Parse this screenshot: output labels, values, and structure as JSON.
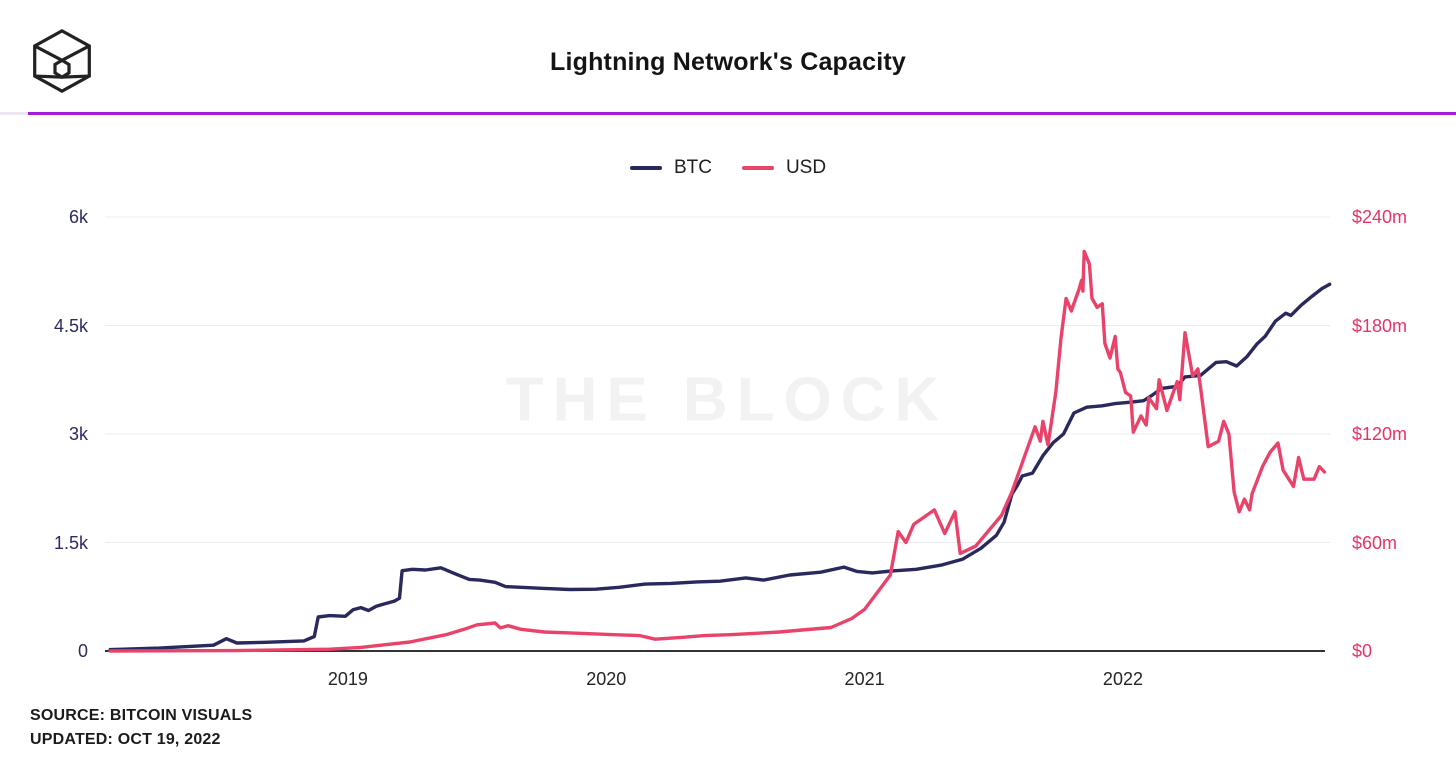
{
  "header": {
    "title": "Lightning Network's Capacity",
    "logo_icon": "block-cube-logo"
  },
  "colors": {
    "accent_divider": "#a21fd6",
    "btc_line": "#29295e",
    "usd_line": "#e9436b",
    "left_axis_text": "#2b2b63",
    "right_axis_text": "#e73366",
    "grid": "#ececec",
    "axis_line": "#333333",
    "watermark_text": "#f2f2f2"
  },
  "watermark": "THE BLOCK",
  "footer": {
    "source_label": "SOURCE: BITCOIN VISUALS",
    "updated_label": "UPDATED: OCT 19, 2022"
  },
  "chart_data": {
    "type": "line",
    "title": "Lightning Network's Capacity",
    "legend_position": "top-center",
    "grid": true,
    "x_domain": [
      2018.06,
      2022.782
    ],
    "x_ticks": [
      {
        "value": 2019,
        "label": "2019"
      },
      {
        "value": 2020,
        "label": "2020"
      },
      {
        "value": 2021,
        "label": "2021"
      },
      {
        "value": 2022,
        "label": "2022"
      }
    ],
    "y_left": {
      "ylim": [
        0,
        6000
      ],
      "ticks": [
        {
          "value": 0,
          "label": "0"
        },
        {
          "value": 1500,
          "label": "1.5k"
        },
        {
          "value": 3000,
          "label": "3k"
        },
        {
          "value": 4500,
          "label": "4.5k"
        },
        {
          "value": 6000,
          "label": "6k"
        }
      ]
    },
    "y_right": {
      "ylim": [
        0,
        240
      ],
      "ticks": [
        {
          "value": 0,
          "label": "$0"
        },
        {
          "value": 60,
          "label": "$60m"
        },
        {
          "value": 120,
          "label": "$120m"
        },
        {
          "value": 180,
          "label": "$180m"
        },
        {
          "value": 240,
          "label": "$240m"
        }
      ]
    },
    "series": [
      {
        "name": "BTC",
        "axis": "left",
        "color": "#29295e",
        "points": [
          [
            2018.08,
            20
          ],
          [
            2018.27,
            40
          ],
          [
            2018.48,
            80
          ],
          [
            2018.53,
            170
          ],
          [
            2018.57,
            110
          ],
          [
            2018.68,
            120
          ],
          [
            2018.83,
            140
          ],
          [
            2018.87,
            200
          ],
          [
            2018.885,
            470
          ],
          [
            2018.93,
            490
          ],
          [
            2018.99,
            480
          ],
          [
            2019.02,
            570
          ],
          [
            2019.05,
            600
          ],
          [
            2019.08,
            560
          ],
          [
            2019.11,
            620
          ],
          [
            2019.14,
            650
          ],
          [
            2019.18,
            690
          ],
          [
            2019.2,
            730
          ],
          [
            2019.21,
            1110
          ],
          [
            2019.25,
            1130
          ],
          [
            2019.3,
            1120
          ],
          [
            2019.36,
            1150
          ],
          [
            2019.42,
            1060
          ],
          [
            2019.47,
            990
          ],
          [
            2019.51,
            980
          ],
          [
            2019.57,
            950
          ],
          [
            2019.61,
            890
          ],
          [
            2019.67,
            880
          ],
          [
            2019.76,
            865
          ],
          [
            2019.86,
            850
          ],
          [
            2019.96,
            855
          ],
          [
            2020.05,
            880
          ],
          [
            2020.15,
            925
          ],
          [
            2020.25,
            935
          ],
          [
            2020.35,
            955
          ],
          [
            2020.44,
            965
          ],
          [
            2020.54,
            1010
          ],
          [
            2020.61,
            980
          ],
          [
            2020.71,
            1050
          ],
          [
            2020.83,
            1090
          ],
          [
            2020.92,
            1160
          ],
          [
            2020.97,
            1100
          ],
          [
            2021.03,
            1080
          ],
          [
            2021.1,
            1105
          ],
          [
            2021.2,
            1130
          ],
          [
            2021.3,
            1190
          ],
          [
            2021.38,
            1270
          ],
          [
            2021.45,
            1420
          ],
          [
            2021.51,
            1600
          ],
          [
            2021.54,
            1780
          ],
          [
            2021.57,
            2170
          ],
          [
            2021.59,
            2280
          ],
          [
            2021.61,
            2420
          ],
          [
            2021.65,
            2460
          ],
          [
            2021.69,
            2700
          ],
          [
            2021.73,
            2880
          ],
          [
            2021.77,
            3000
          ],
          [
            2021.81,
            3290
          ],
          [
            2021.86,
            3370
          ],
          [
            2021.92,
            3390
          ],
          [
            2021.97,
            3420
          ],
          [
            2022.03,
            3440
          ],
          [
            2022.08,
            3460
          ],
          [
            2022.11,
            3530
          ],
          [
            2022.15,
            3630
          ],
          [
            2022.21,
            3660
          ],
          [
            2022.24,
            3790
          ],
          [
            2022.3,
            3810
          ],
          [
            2022.36,
            3990
          ],
          [
            2022.4,
            4000
          ],
          [
            2022.44,
            3940
          ],
          [
            2022.48,
            4070
          ],
          [
            2022.52,
            4250
          ],
          [
            2022.55,
            4350
          ],
          [
            2022.59,
            4560
          ],
          [
            2022.63,
            4670
          ],
          [
            2022.65,
            4640
          ],
          [
            2022.69,
            4780
          ],
          [
            2022.73,
            4900
          ],
          [
            2022.77,
            5010
          ],
          [
            2022.8,
            5070
          ]
        ]
      },
      {
        "name": "USD",
        "axis": "right",
        "color": "#e9436b",
        "points": [
          [
            2018.08,
            0.02
          ],
          [
            2018.57,
            0.2
          ],
          [
            2018.93,
            1
          ],
          [
            2019.05,
            2
          ],
          [
            2019.24,
            5
          ],
          [
            2019.38,
            9
          ],
          [
            2019.45,
            12
          ],
          [
            2019.5,
            14.5
          ],
          [
            2019.57,
            15.5
          ],
          [
            2019.59,
            12.8
          ],
          [
            2019.62,
            14
          ],
          [
            2019.67,
            12
          ],
          [
            2019.76,
            10.5
          ],
          [
            2019.86,
            10
          ],
          [
            2020.03,
            9
          ],
          [
            2020.13,
            8.5
          ],
          [
            2020.19,
            6.5
          ],
          [
            2020.29,
            7.5
          ],
          [
            2020.38,
            8.5
          ],
          [
            2020.48,
            9
          ],
          [
            2020.67,
            10.5
          ],
          [
            2020.87,
            13
          ],
          [
            2020.95,
            18
          ],
          [
            2021.0,
            23
          ],
          [
            2021.1,
            42
          ],
          [
            2021.13,
            66
          ],
          [
            2021.16,
            60
          ],
          [
            2021.19,
            70
          ],
          [
            2021.27,
            78
          ],
          [
            2021.31,
            65
          ],
          [
            2021.35,
            77
          ],
          [
            2021.37,
            54
          ],
          [
            2021.43,
            58
          ],
          [
            2021.53,
            75
          ],
          [
            2021.57,
            88
          ],
          [
            2021.62,
            108
          ],
          [
            2021.66,
            124
          ],
          [
            2021.68,
            116
          ],
          [
            2021.69,
            127
          ],
          [
            2021.71,
            114
          ],
          [
            2021.74,
            143
          ],
          [
            2021.76,
            173
          ],
          [
            2021.78,
            195
          ],
          [
            2021.8,
            188
          ],
          [
            2021.83,
            200
          ],
          [
            2021.84,
            205
          ],
          [
            2021.845,
            199
          ],
          [
            2021.85,
            221
          ],
          [
            2021.87,
            214
          ],
          [
            2021.88,
            195
          ],
          [
            2021.9,
            190
          ],
          [
            2021.92,
            192
          ],
          [
            2021.93,
            170
          ],
          [
            2021.95,
            162
          ],
          [
            2021.97,
            174
          ],
          [
            2021.98,
            156
          ],
          [
            2021.99,
            154
          ],
          [
            2022.01,
            143
          ],
          [
            2022.03,
            141
          ],
          [
            2022.04,
            121
          ],
          [
            2022.07,
            130
          ],
          [
            2022.09,
            125
          ],
          [
            2022.1,
            140
          ],
          [
            2022.13,
            134
          ],
          [
            2022.14,
            150
          ],
          [
            2022.17,
            133
          ],
          [
            2022.19,
            141
          ],
          [
            2022.21,
            149
          ],
          [
            2022.22,
            139
          ],
          [
            2022.24,
            176
          ],
          [
            2022.27,
            152
          ],
          [
            2022.29,
            156
          ],
          [
            2022.3,
            146
          ],
          [
            2022.33,
            113
          ],
          [
            2022.37,
            116
          ],
          [
            2022.39,
            127
          ],
          [
            2022.41,
            120
          ],
          [
            2022.43,
            88
          ],
          [
            2022.45,
            77
          ],
          [
            2022.47,
            84
          ],
          [
            2022.49,
            78
          ],
          [
            2022.5,
            87
          ],
          [
            2022.54,
            102
          ],
          [
            2022.57,
            110
          ],
          [
            2022.6,
            115
          ],
          [
            2022.62,
            100
          ],
          [
            2022.66,
            91
          ],
          [
            2022.68,
            107
          ],
          [
            2022.7,
            95
          ],
          [
            2022.74,
            95
          ],
          [
            2022.76,
            102
          ],
          [
            2022.78,
            99
          ]
        ]
      }
    ]
  }
}
